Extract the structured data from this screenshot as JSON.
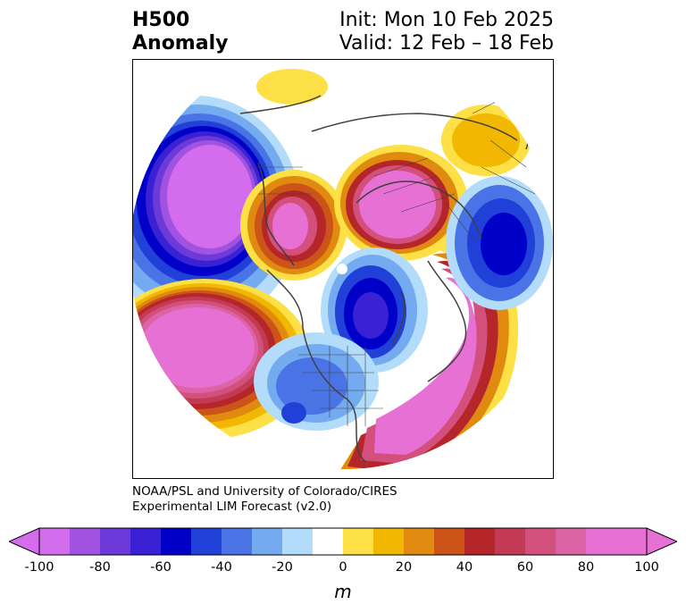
{
  "title": {
    "line1": "H500",
    "line2": "Anomaly",
    "init": "Init: Mon 10 Feb 2025",
    "valid": "Valid: 12 Feb – 18 Feb"
  },
  "credits": {
    "line1": "NOAA/PSL and University of Colorado/CIRES",
    "line2": "Experimental LIM Forecast (v2.0)"
  },
  "colorbar": {
    "ticks": [
      "-100",
      "-80",
      "-60",
      "-40",
      "-20",
      "0",
      "20",
      "40",
      "60",
      "80",
      "100"
    ],
    "levels": [
      -100,
      -90,
      -80,
      -70,
      -60,
      -50,
      -40,
      -30,
      -20,
      -10,
      10,
      20,
      30,
      40,
      50,
      60,
      70,
      80,
      90,
      100
    ],
    "colors": [
      "#d36ded",
      "#a152e1",
      "#6b3ad9",
      "#3a21d4",
      "#0000c8",
      "#2140d8",
      "#4a74e6",
      "#74aaf0",
      "#b2dcf9",
      "#ffffff",
      "#fce045",
      "#f2b700",
      "#e08a10",
      "#cc5418",
      "#b4262a",
      "#c23a54",
      "#d3507d",
      "#dc64a6",
      "#e770d4",
      "#e770d4"
    ],
    "low_extend_color": "#d36ded",
    "high_extend_color": "#e770d4",
    "units": "m"
  }
}
